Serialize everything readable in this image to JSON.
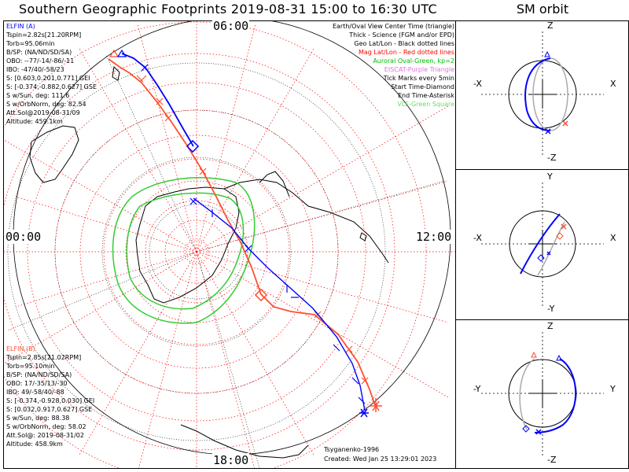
{
  "title": "Southern Geographic Footprints 2019-08-31 15:00 to 16:30 UTC",
  "sm_title": "SM orbit",
  "hour_labels": {
    "top": "06:00",
    "left": "00:00",
    "right": "12:00",
    "bottom": "18:00"
  },
  "legend": [
    {
      "text": "Earth/Oval View Center Time (triangle)",
      "color": "#000000"
    },
    {
      "text": "Thick - Science (FGM and/or EPD)",
      "color": "#000000"
    },
    {
      "text": "Geo Lat/Lon - Black dotted lines",
      "color": "#000000"
    },
    {
      "text": "Mag Lat/Lon - Red dotted lines",
      "color": "#ff0000"
    },
    {
      "text": "Auroral Oval-Green, kp=2",
      "color": "#00bb00"
    },
    {
      "text": "EISCAT-Purple Triangle",
      "color": "#e070e0"
    },
    {
      "text": "Tick Marks every 5min",
      "color": "#000000"
    },
    {
      "text": "Start Time-Diamond",
      "color": "#000000"
    },
    {
      "text": "End Time-Asterisk",
      "color": "#000000"
    },
    {
      "text": "VLF-Green Square",
      "color": "#66dd66"
    }
  ],
  "elfin_a": {
    "lines": [
      "ELFIN (A)",
      "Tspin=2.82s[21.20RPM]",
      "Torb=95.06min",
      "B/SP: (NA/ND/SD/SA)",
      "OBO: --77/-14/-86/-11",
      "IBO: -47/40/-58/23",
      "S: [0.603,0.201,0.771] GEI",
      "S: [-0.374,-0.882,0.627] GSE",
      "S w/Sun, deg: 111.6",
      "S w/OrbNorm, deg: 82.54",
      "Att.Sol@2019-08-31/09",
      "Altitude: 459.1km"
    ]
  },
  "elfin_b": {
    "lines": [
      "ELFIN (B)",
      "Tspin=2.85s[21.02RPM]",
      "Torb=95.10min",
      "B/SP: (NA/ND/SD/SA)",
      "OBO: 17/-35/13/-30",
      "IBO: 49/-58/40/-88",
      "S: [-0.374,-0.928,0.030] GEI",
      "S: [0.032,0.917,0.627] GSE",
      "S w/Sun, deg: 88.38",
      "S w/OrbNorm, deg: 58.02",
      "Att.Sol@: 2019-08-31/02",
      "Altitude: 458.9km"
    ]
  },
  "footer": {
    "model": "Tsyganenko-1996",
    "created": "Created: Wed Jan 25 13:29:01 2023"
  },
  "sm_panels": [
    {
      "top": "Z",
      "bottom": "-Z",
      "left": "-X",
      "right": "X"
    },
    {
      "top": "Y",
      "bottom": "-Y",
      "left": "-X",
      "right": "X"
    },
    {
      "top": "Z",
      "bottom": "-Z",
      "left": "-Y",
      "right": "Y"
    }
  ],
  "colors": {
    "elfin_a": "#0000ff",
    "elfin_b": "#ff5030",
    "mag_grid": "#ff0000",
    "oval": "#22cc22",
    "geo_grid": "#000000"
  }
}
